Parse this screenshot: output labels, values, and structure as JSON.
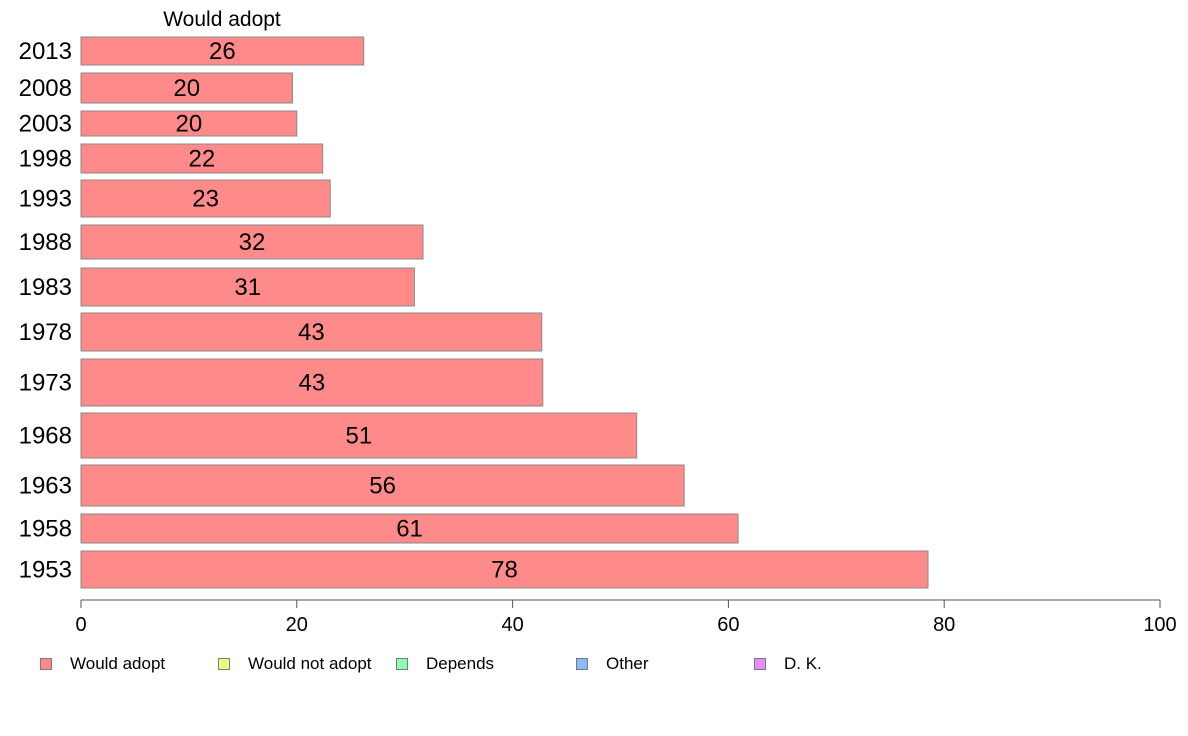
{
  "chart_data": {
    "type": "bar",
    "orientation": "horizontal",
    "stacked": true,
    "title": "",
    "column_title": "Would adopt",
    "xlim": [
      0,
      100
    ],
    "xticks": [
      0,
      20,
      40,
      60,
      80,
      100
    ],
    "grid": false,
    "legend_placement": "bottom",
    "categories": [
      "2013",
      "2008",
      "2003",
      "1998",
      "1993",
      "1988",
      "1983",
      "1978",
      "1973",
      "1968",
      "1963",
      "1958",
      "1953"
    ],
    "series": [
      {
        "name": "Would adopt",
        "color": "#ff8a8a",
        "values": [
          26.2,
          19.6,
          20.0,
          22.4,
          23.1,
          31.7,
          30.9,
          42.7,
          42.8,
          51.5,
          55.9,
          60.9,
          78.5
        ],
        "labels": [
          "26",
          "20",
          "20",
          "22",
          "23",
          "32",
          "31",
          "43",
          "43",
          "51",
          "56",
          "61",
          "78"
        ]
      }
    ],
    "legend": [
      {
        "name": "Would adopt",
        "color": "#ff8a8a"
      },
      {
        "name": "Would not adopt",
        "color": "#eaff80"
      },
      {
        "name": "Depends",
        "color": "#8affb4"
      },
      {
        "name": "Other",
        "color": "#8abaff"
      },
      {
        "name": "D. K.",
        "color": "#e88aff"
      }
    ]
  }
}
